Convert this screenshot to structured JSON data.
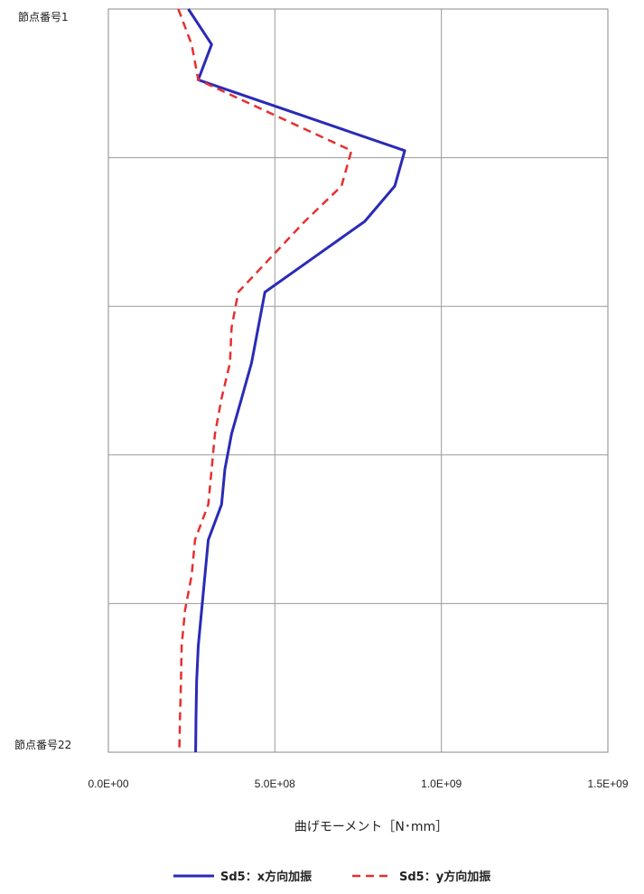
{
  "chart_data": {
    "type": "line",
    "orientation": "horizontal-value",
    "xlabel": "曲げモーメント［N･mm］",
    "xlim": [
      0,
      1500000000
    ],
    "x_ticks": [
      0,
      500000000,
      1000000000,
      1500000000
    ],
    "x_tick_labels": [
      "0.0E+00",
      "5.0E+08",
      "1.0E+09",
      "1.5E+09"
    ],
    "node_top_label": "節点番号1",
    "node_bottom_label": "節点番号22",
    "nodes": [
      1,
      2,
      3,
      4,
      5,
      6,
      7,
      8,
      9,
      10,
      11,
      12,
      13,
      14,
      15,
      16,
      17,
      18,
      19,
      20,
      21,
      22
    ],
    "grid": true,
    "legend_position": "bottom",
    "series": [
      {
        "name": "Sd5：x方向加振",
        "color": "#2a2ab8",
        "style": "solid",
        "values": [
          240000000,
          310000000,
          270000000,
          580000000,
          890000000,
          860000000,
          770000000,
          620000000,
          470000000,
          450000000,
          430000000,
          400000000,
          370000000,
          350000000,
          340000000,
          300000000,
          290000000,
          280000000,
          270000000,
          265000000,
          263000000,
          262000000
        ]
      },
      {
        "name": "Sd5：y方向加振",
        "color": "#e53030",
        "style": "dashed",
        "values": [
          210000000,
          250000000,
          270000000,
          500000000,
          730000000,
          700000000,
          590000000,
          490000000,
          390000000,
          370000000,
          365000000,
          340000000,
          320000000,
          310000000,
          300000000,
          260000000,
          250000000,
          230000000,
          220000000,
          218000000,
          215000000,
          213000000
        ]
      }
    ]
  }
}
